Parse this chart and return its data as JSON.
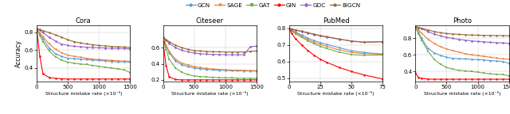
{
  "legend_labels": [
    "GCN",
    "SAGE",
    "GAT",
    "GIN",
    "GDC",
    "BiGCN"
  ],
  "colors": [
    "#5b9bd5",
    "#ed7d31",
    "#70ad47",
    "#ff0000",
    "#9966cc",
    "#996633"
  ],
  "markers": [
    "o",
    "v",
    "s",
    "o",
    "D",
    "o"
  ],
  "cora": {
    "title": "Cora",
    "xlabel": "Structure mistake rate (×10⁻⁵)",
    "ylabel": "Accuracy",
    "xlim": [
      0,
      1500
    ],
    "xticks": [
      0,
      500,
      1000,
      1500
    ],
    "ylim": [
      0.25,
      0.88
    ],
    "yticks": [
      0.4,
      0.6,
      0.8
    ],
    "x": [
      0,
      50,
      100,
      200,
      300,
      400,
      500,
      600,
      700,
      800,
      900,
      1000,
      1100,
      1200,
      1300,
      1400,
      1500
    ],
    "GCN": [
      0.83,
      0.775,
      0.725,
      0.625,
      0.56,
      0.53,
      0.51,
      0.505,
      0.5,
      0.495,
      0.49,
      0.485,
      0.48,
      0.475,
      0.47,
      0.47,
      0.468
    ],
    "SAGE": [
      0.83,
      0.79,
      0.75,
      0.67,
      0.61,
      0.57,
      0.545,
      0.53,
      0.52,
      0.51,
      0.5,
      0.495,
      0.49,
      0.485,
      0.48,
      0.478,
      0.475
    ],
    "GAT": [
      0.84,
      0.765,
      0.695,
      0.59,
      0.525,
      0.49,
      0.465,
      0.455,
      0.445,
      0.44,
      0.43,
      0.42,
      0.41,
      0.4,
      0.39,
      0.38,
      0.35
    ],
    "GIN": [
      0.83,
      0.53,
      0.335,
      0.295,
      0.285,
      0.28,
      0.278,
      0.278,
      0.278,
      0.278,
      0.278,
      0.278,
      0.278,
      0.278,
      0.278,
      0.278,
      0.278
    ],
    "GDC": [
      0.84,
      0.82,
      0.795,
      0.745,
      0.7,
      0.668,
      0.652,
      0.643,
      0.638,
      0.633,
      0.63,
      0.627,
      0.624,
      0.622,
      0.62,
      0.618,
      0.615
    ],
    "BiGCN": [
      0.84,
      0.83,
      0.818,
      0.795,
      0.77,
      0.745,
      0.715,
      0.695,
      0.68,
      0.67,
      0.66,
      0.652,
      0.648,
      0.642,
      0.638,
      0.635,
      0.63
    ]
  },
  "citeseer": {
    "title": "Citeseer",
    "xlabel": "Structure mistake rate (×10⁻⁵)",
    "xlim": [
      0,
      1500
    ],
    "xticks": [
      0,
      500,
      1000,
      1500
    ],
    "ylim": [
      0.18,
      0.88
    ],
    "yticks": [
      0.2,
      0.4,
      0.6
    ],
    "x": [
      0,
      50,
      100,
      200,
      300,
      400,
      500,
      600,
      700,
      800,
      900,
      1000,
      1100,
      1200,
      1300,
      1400,
      1500
    ],
    "GCN": [
      0.72,
      0.615,
      0.535,
      0.435,
      0.39,
      0.365,
      0.348,
      0.338,
      0.33,
      0.325,
      0.32,
      0.318,
      0.315,
      0.313,
      0.312,
      0.31,
      0.308
    ],
    "SAGE": [
      0.72,
      0.63,
      0.555,
      0.455,
      0.41,
      0.385,
      0.365,
      0.352,
      0.342,
      0.335,
      0.33,
      0.325,
      0.322,
      0.32,
      0.318,
      0.316,
      0.315
    ],
    "GAT": [
      0.71,
      0.575,
      0.455,
      0.35,
      0.295,
      0.265,
      0.25,
      0.242,
      0.236,
      0.232,
      0.228,
      0.226,
      0.224,
      0.222,
      0.22,
      0.22,
      0.22
    ],
    "GIN": [
      0.67,
      0.375,
      0.238,
      0.205,
      0.2,
      0.2,
      0.2,
      0.2,
      0.2,
      0.2,
      0.2,
      0.2,
      0.2,
      0.2,
      0.2,
      0.2,
      0.2
    ],
    "GDC": [
      0.72,
      0.69,
      0.655,
      0.6,
      0.568,
      0.548,
      0.535,
      0.525,
      0.52,
      0.517,
      0.515,
      0.513,
      0.512,
      0.512,
      0.512,
      0.612,
      0.62
    ],
    "BiGCN": [
      0.73,
      0.7,
      0.675,
      0.63,
      0.6,
      0.578,
      0.565,
      0.558,
      0.553,
      0.55,
      0.548,
      0.547,
      0.546,
      0.546,
      0.546,
      0.556,
      0.558
    ]
  },
  "pubmed": {
    "title": "PubMed",
    "xlabel": "Structure mistake rate (×10⁻⁵)",
    "xlim": [
      0,
      75
    ],
    "xticks": [
      0,
      25,
      50,
      75
    ],
    "ylim": [
      0.48,
      0.82
    ],
    "yticks": [
      0.5,
      0.6,
      0.7,
      0.8
    ],
    "x": [
      0,
      2,
      5,
      10,
      15,
      20,
      25,
      30,
      40,
      50,
      60,
      75
    ],
    "GCN": [
      0.8,
      0.79,
      0.778,
      0.76,
      0.742,
      0.726,
      0.714,
      0.704,
      0.684,
      0.665,
      0.655,
      0.645
    ],
    "SAGE": [
      0.8,
      0.788,
      0.773,
      0.752,
      0.733,
      0.716,
      0.703,
      0.692,
      0.671,
      0.655,
      0.648,
      0.645
    ],
    "GAT": [
      0.8,
      0.785,
      0.768,
      0.746,
      0.725,
      0.707,
      0.692,
      0.679,
      0.657,
      0.642,
      0.638,
      0.64
    ],
    "GIN": [
      0.798,
      0.769,
      0.738,
      0.7,
      0.667,
      0.638,
      0.614,
      0.596,
      0.565,
      0.54,
      0.52,
      0.495
    ],
    "GDC": [
      0.8,
      0.796,
      0.79,
      0.781,
      0.772,
      0.763,
      0.755,
      0.748,
      0.735,
      0.724,
      0.718,
      0.72
    ],
    "BiGCN": [
      0.8,
      0.796,
      0.791,
      0.783,
      0.774,
      0.765,
      0.757,
      0.75,
      0.736,
      0.723,
      0.716,
      0.72
    ]
  },
  "photo": {
    "title": "Photo",
    "xlabel": "Structure mistake rate (×10⁻⁵)",
    "xlim": [
      0,
      1500
    ],
    "xticks": [
      0,
      500,
      1000,
      1500
    ],
    "ylim": [
      0.28,
      0.96
    ],
    "yticks": [
      0.4,
      0.6,
      0.8
    ],
    "x": [
      0,
      50,
      100,
      200,
      300,
      400,
      500,
      600,
      700,
      800,
      900,
      1000,
      1100,
      1200,
      1300,
      1400,
      1500
    ],
    "GCN": [
      0.93,
      0.87,
      0.8,
      0.68,
      0.625,
      0.595,
      0.572,
      0.56,
      0.555,
      0.552,
      0.548,
      0.545,
      0.54,
      0.532,
      0.528,
      0.522,
      0.5
    ],
    "SAGE": [
      0.94,
      0.9,
      0.86,
      0.79,
      0.74,
      0.7,
      0.672,
      0.652,
      0.635,
      0.615,
      0.6,
      0.592,
      0.582,
      0.572,
      0.562,
      0.552,
      0.548
    ],
    "GAT": [
      0.93,
      0.855,
      0.778,
      0.645,
      0.548,
      0.488,
      0.45,
      0.428,
      0.415,
      0.408,
      0.4,
      0.392,
      0.382,
      0.372,
      0.368,
      0.362,
      0.35
    ],
    "GIN": [
      0.38,
      0.328,
      0.318,
      0.31,
      0.308,
      0.308,
      0.308,
      0.308,
      0.308,
      0.308,
      0.308,
      0.308,
      0.308,
      0.308,
      0.308,
      0.308,
      0.308
    ],
    "GDC": [
      0.94,
      0.93,
      0.915,
      0.882,
      0.852,
      0.83,
      0.812,
      0.8,
      0.788,
      0.778,
      0.77,
      0.762,
      0.758,
      0.752,
      0.748,
      0.745,
      0.74
    ],
    "BiGCN": [
      0.94,
      0.932,
      0.922,
      0.902,
      0.882,
      0.868,
      0.858,
      0.852,
      0.848,
      0.843,
      0.84,
      0.838,
      0.836,
      0.835,
      0.834,
      0.833,
      0.832
    ]
  }
}
